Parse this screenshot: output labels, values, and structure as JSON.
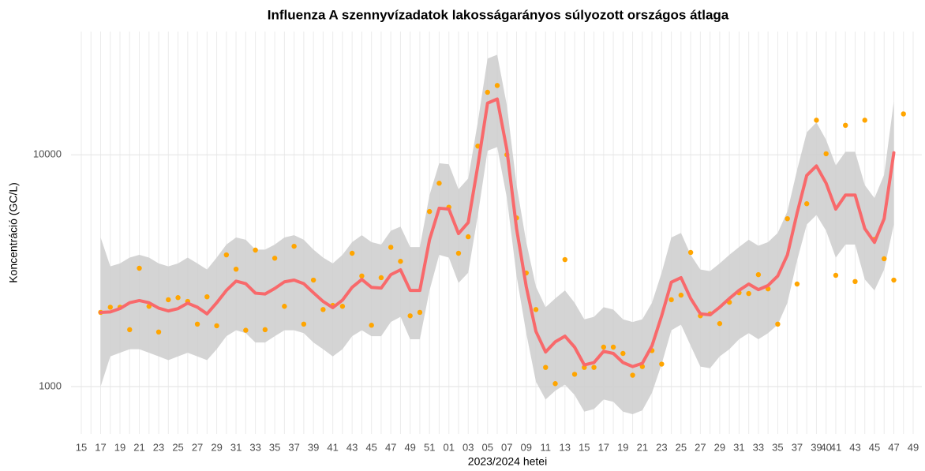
{
  "chart_data": {
    "type": "line_band_points",
    "title": "Influenza A szennyvízadatok lakosságarányos súlyozott országos átlaga",
    "x_label": "2023/2024 hetei",
    "y_label": "Koncentráció (GC/L)",
    "log_y": true,
    "grid": true,
    "categories": [
      "15",
      null,
      "17",
      null,
      "19",
      null,
      "21",
      null,
      "23",
      null,
      "25",
      null,
      "27",
      null,
      "29",
      null,
      "31",
      null,
      "33",
      null,
      "35",
      null,
      "37",
      null,
      "39",
      null,
      "41",
      null,
      "43",
      null,
      "45",
      null,
      "47",
      null,
      "49",
      null,
      "51",
      null,
      "01",
      null,
      "03",
      null,
      "05",
      null,
      "07",
      null,
      "09",
      null,
      "11",
      null,
      "13",
      null,
      "15",
      null,
      "17",
      null,
      "19",
      null,
      "21",
      null,
      "23",
      null,
      "25",
      null,
      "27",
      null,
      "29",
      null,
      "31",
      null,
      "33",
      null,
      "35",
      null,
      "37",
      null,
      "39",
      "40",
      "41",
      null,
      "43",
      null,
      "45",
      null,
      "47",
      null,
      "49"
    ],
    "ylim": [
      625,
      34000
    ],
    "yticks": [
      1000,
      10000
    ],
    "band": {
      "color": "#cccccc",
      "lower": [
        null,
        null,
        1000,
        1350,
        1400,
        1450,
        1450,
        1400,
        1350,
        1300,
        1350,
        1400,
        1350,
        1300,
        1450,
        1650,
        1750,
        1700,
        1550,
        1550,
        1650,
        1750,
        1750,
        1700,
        1550,
        1450,
        1350,
        1450,
        1650,
        1750,
        1650,
        1650,
        1900,
        2000,
        1600,
        1600,
        2600,
        3700,
        3600,
        2800,
        3100,
        5500,
        10400,
        10800,
        6500,
        3000,
        1700,
        1050,
        880,
        960,
        1020,
        920,
        780,
        800,
        880,
        860,
        780,
        760,
        790,
        940,
        1250,
        1750,
        1850,
        1500,
        1220,
        1200,
        1350,
        1450,
        1600,
        1700,
        1600,
        1700,
        1850,
        2300,
        3500,
        5000,
        5500,
        4700,
        3600,
        4100,
        4100,
        2900,
        2600,
        3200,
        5000,
        null,
        null
      ],
      "upper": [
        null,
        null,
        4400,
        3300,
        3400,
        3600,
        3700,
        3600,
        3400,
        3300,
        3400,
        3600,
        3400,
        3200,
        3600,
        4100,
        4400,
        4300,
        3900,
        3900,
        4100,
        4400,
        4500,
        4300,
        3900,
        3600,
        3400,
        3700,
        4200,
        4500,
        4200,
        4100,
        4700,
        4900,
        4000,
        4000,
        6700,
        9200,
        9100,
        7100,
        7900,
        13900,
        26000,
        27000,
        16300,
        7400,
        4200,
        2700,
        2200,
        2400,
        2600,
        2300,
        1950,
        2000,
        2200,
        2150,
        1950,
        1900,
        1950,
        2300,
        3100,
        4400,
        4600,
        3700,
        3200,
        3150,
        3400,
        3700,
        4000,
        4300,
        4050,
        4200,
        4600,
        5700,
        8600,
        12500,
        13800,
        11600,
        9000,
        10300,
        10300,
        7400,
        6500,
        8200,
        17000,
        null,
        null
      ]
    },
    "line": {
      "color": "#f8696b",
      "values": [
        null,
        null,
        2090,
        2100,
        2170,
        2300,
        2350,
        2300,
        2180,
        2120,
        2170,
        2290,
        2200,
        2060,
        2300,
        2600,
        2850,
        2780,
        2530,
        2510,
        2650,
        2830,
        2880,
        2780,
        2540,
        2330,
        2190,
        2360,
        2680,
        2900,
        2680,
        2660,
        3040,
        3190,
        2600,
        2600,
        4300,
        5880,
        5830,
        4570,
        5100,
        9000,
        16700,
        17400,
        10500,
        4800,
        2700,
        1730,
        1410,
        1560,
        1650,
        1480,
        1240,
        1270,
        1420,
        1390,
        1270,
        1220,
        1260,
        1500,
        2020,
        2820,
        2950,
        2400,
        2060,
        2040,
        2200,
        2400,
        2600,
        2770,
        2620,
        2730,
        3000,
        3700,
        5600,
        8150,
        8950,
        7540,
        5830,
        6700,
        6700,
        4800,
        4190,
        5300,
        10200,
        null,
        null
      ]
    },
    "points": {
      "color": "#ffa500",
      "values": [
        null,
        null,
        2090,
        2200,
        2200,
        1760,
        3240,
        2220,
        1720,
        2370,
        2420,
        2330,
        1860,
        2440,
        1830,
        3700,
        3210,
        1750,
        3880,
        1760,
        3580,
        2220,
        4030,
        1860,
        2880,
        2150,
        2240,
        2220,
        3760,
        3000,
        1840,
        2950,
        3990,
        3470,
        2020,
        2090,
        5690,
        7540,
        5940,
        3760,
        4430,
        10900,
        18600,
        19900,
        10000,
        5340,
        3090,
        2150,
        1210,
        1030,
        3530,
        1130,
        1210,
        1210,
        1480,
        1480,
        1390,
        1120,
        1220,
        1430,
        1250,
        2370,
        2480,
        3790,
        2020,
        2060,
        1870,
        2310,
        2540,
        2520,
        3040,
        2640,
        1860,
        5300,
        2770,
        6150,
        14100,
        10100,
        3020,
        13400,
        2840,
        14100,
        4320,
        3560,
        2880,
        15000,
        null
      ]
    }
  }
}
